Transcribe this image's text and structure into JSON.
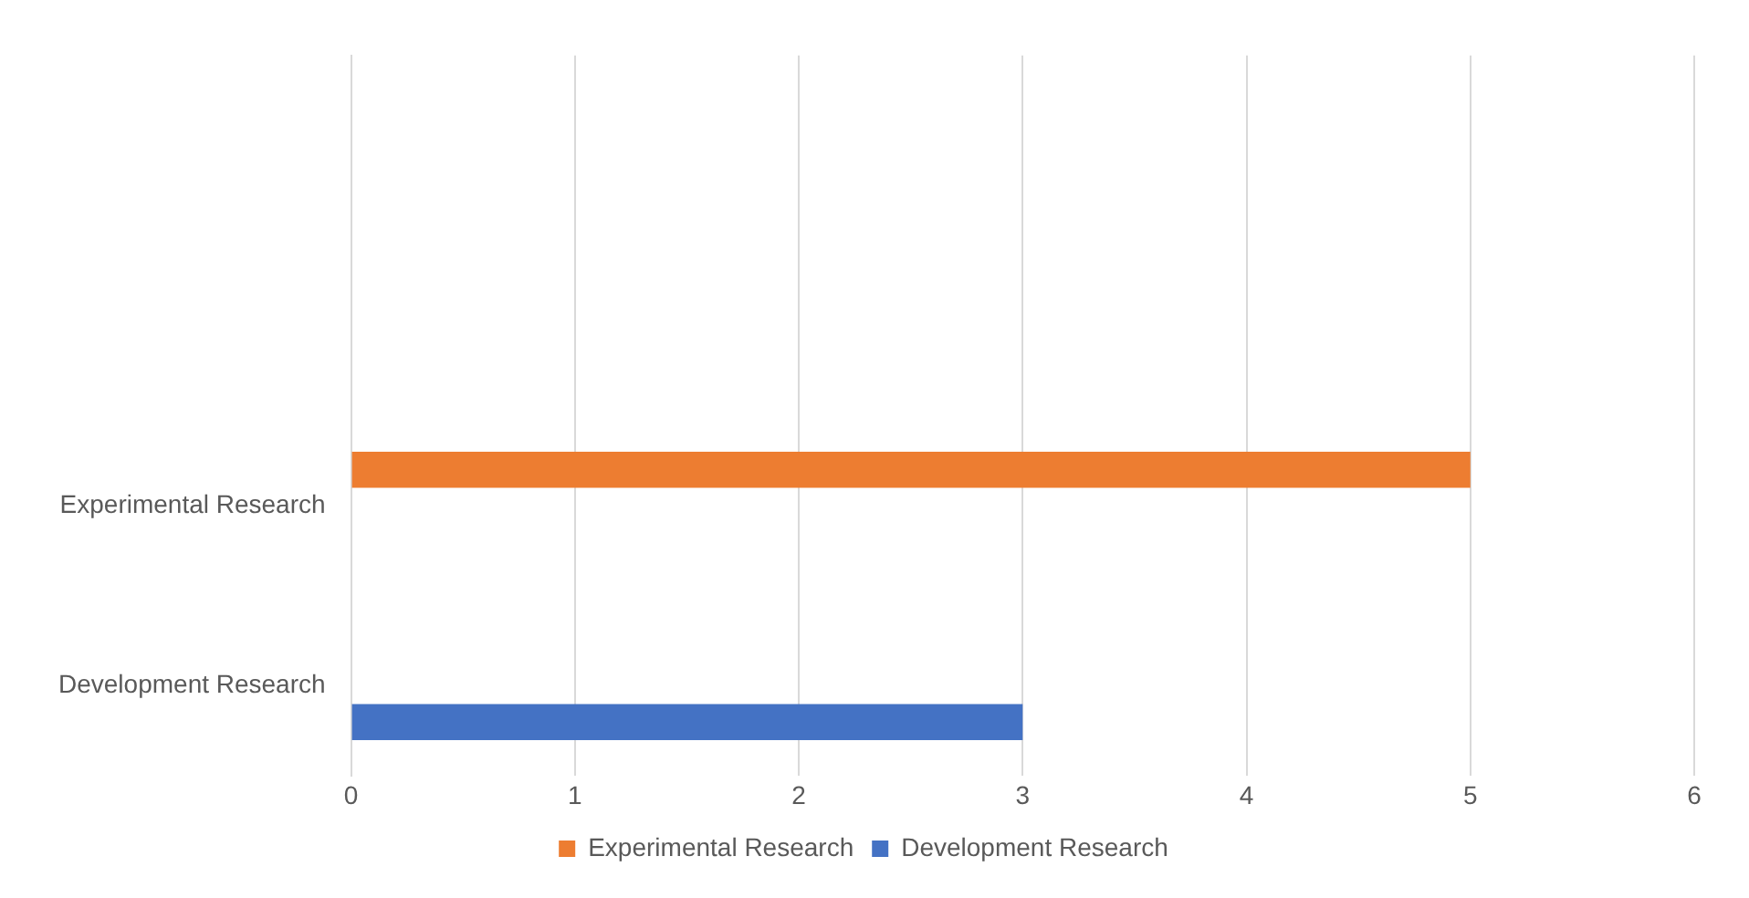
{
  "chart_data": {
    "type": "bar",
    "orientation": "horizontal",
    "categories": [
      null,
      null,
      "Experimental Research",
      "Development Research"
    ],
    "series": [
      {
        "name": "Experimental Research",
        "color": "#ed7d31",
        "values": [
          null,
          null,
          5,
          null
        ]
      },
      {
        "name": "Development Research",
        "color": "#4472c4",
        "values": [
          null,
          null,
          null,
          3
        ]
      }
    ],
    "xlim": [
      0,
      6
    ],
    "xticks": [
      0,
      1,
      2,
      3,
      4,
      5,
      6
    ],
    "grid": "x",
    "legend": "bottom"
  }
}
